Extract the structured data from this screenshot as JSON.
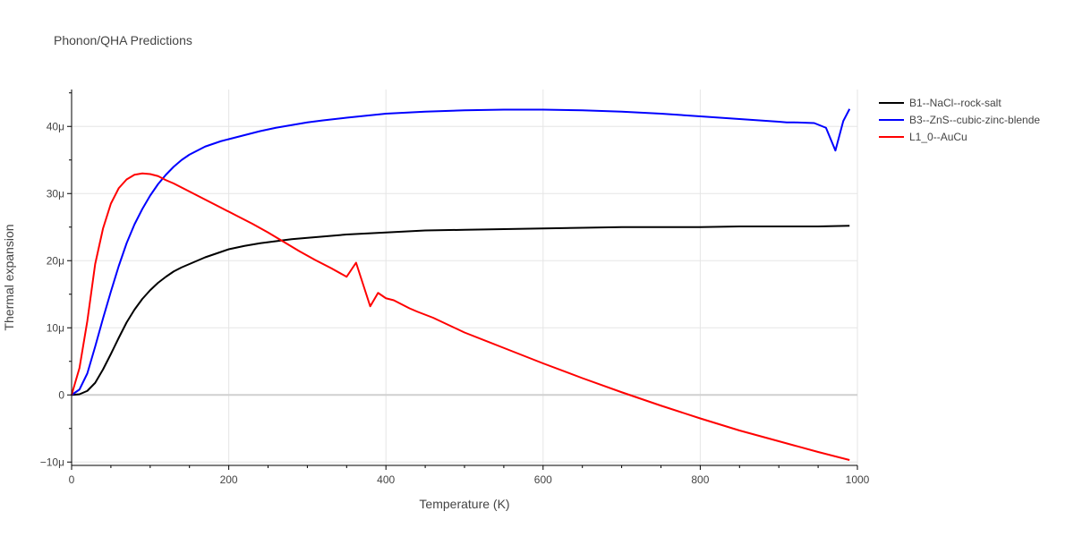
{
  "chart_data": {
    "type": "line",
    "title": "Phonon/QHA Predictions",
    "xlabel": "Temperature (K)",
    "ylabel": "Thermal expansion",
    "xlim": [
      0,
      1000
    ],
    "ylim": [
      -1.05e-05,
      4.55e-05
    ],
    "x_ticks": [
      0,
      200,
      400,
      600,
      800,
      1000
    ],
    "x_tick_labels": [
      "0",
      "200",
      "400",
      "600",
      "800",
      "1000"
    ],
    "y_ticks": [
      -1e-05,
      0,
      1e-05,
      2e-05,
      3e-05,
      4e-05
    ],
    "y_tick_labels": [
      "−10μ",
      "0",
      "10μ",
      "20μ",
      "30μ",
      "40μ"
    ],
    "grid": true,
    "legend_position": "top-right",
    "series": [
      {
        "name": "B1--NaCl--rock-salt",
        "color": "#000000",
        "x": [
          0,
          10,
          20,
          30,
          40,
          50,
          60,
          70,
          80,
          90,
          100,
          110,
          120,
          130,
          140,
          150,
          160,
          170,
          180,
          190,
          200,
          220,
          240,
          260,
          280,
          300,
          350,
          400,
          450,
          500,
          550,
          600,
          650,
          700,
          750,
          800,
          850,
          900,
          950,
          990
        ],
        "y": [
          0,
          1e-07,
          6e-07,
          1.8e-06,
          3.8e-06,
          6.1e-06,
          8.5e-06,
          1.08e-05,
          1.27e-05,
          1.43e-05,
          1.56e-05,
          1.67e-05,
          1.76e-05,
          1.84e-05,
          1.9e-05,
          1.95e-05,
          2e-05,
          2.05e-05,
          2.09e-05,
          2.13e-05,
          2.17e-05,
          2.22e-05,
          2.26e-05,
          2.29e-05,
          2.32e-05,
          2.34e-05,
          2.39e-05,
          2.42e-05,
          2.45e-05,
          2.46e-05,
          2.47e-05,
          2.48e-05,
          2.49e-05,
          2.5e-05,
          2.5e-05,
          2.5e-05,
          2.51e-05,
          2.51e-05,
          2.51e-05,
          2.52e-05
        ]
      },
      {
        "name": "B3--ZnS--cubic-zinc-blende",
        "color": "#0000ff",
        "x": [
          0,
          10,
          20,
          30,
          40,
          50,
          60,
          70,
          80,
          90,
          100,
          110,
          120,
          130,
          140,
          150,
          160,
          170,
          180,
          190,
          200,
          220,
          240,
          260,
          280,
          300,
          320,
          350,
          400,
          450,
          500,
          550,
          600,
          650,
          700,
          750,
          800,
          850,
          900,
          910,
          920,
          945,
          960,
          972,
          982,
          990
        ],
        "y": [
          0,
          8e-07,
          3.2e-06,
          7.2e-06,
          1.14e-05,
          1.54e-05,
          1.92e-05,
          2.26e-05,
          2.54e-05,
          2.77e-05,
          2.97e-05,
          3.14e-05,
          3.28e-05,
          3.4e-05,
          3.5e-05,
          3.58e-05,
          3.64e-05,
          3.7e-05,
          3.74e-05,
          3.78e-05,
          3.81e-05,
          3.87e-05,
          3.93e-05,
          3.98e-05,
          4.02e-05,
          4.06e-05,
          4.09e-05,
          4.13e-05,
          4.19e-05,
          4.22e-05,
          4.24e-05,
          4.25e-05,
          4.25e-05,
          4.24e-05,
          4.22e-05,
          4.19e-05,
          4.15e-05,
          4.11e-05,
          4.07e-05,
          4.06e-05,
          4.06e-05,
          4.05e-05,
          3.98e-05,
          3.64e-05,
          4.08e-05,
          4.26e-05
        ]
      },
      {
        "name": "L1_0--AuCu",
        "color": "#ff0000",
        "x": [
          0,
          10,
          20,
          30,
          40,
          50,
          60,
          70,
          80,
          90,
          100,
          110,
          120,
          130,
          140,
          150,
          170,
          190,
          210,
          230,
          250,
          270,
          290,
          310,
          330,
          350,
          362,
          380,
          390,
          400,
          410,
          420,
          430,
          440,
          460,
          500,
          550,
          600,
          650,
          700,
          750,
          800,
          850,
          900,
          950,
          990
        ],
        "y": [
          0,
          4e-06,
          1.1e-05,
          1.95e-05,
          2.48e-05,
          2.85e-05,
          3.08e-05,
          3.21e-05,
          3.28e-05,
          3.3e-05,
          3.29e-05,
          3.26e-05,
          3.2e-05,
          3.15e-05,
          3.09e-05,
          3.03e-05,
          2.91e-05,
          2.79e-05,
          2.67e-05,
          2.55e-05,
          2.42e-05,
          2.28e-05,
          2.14e-05,
          2.01e-05,
          1.89e-05,
          1.76e-05,
          1.97e-05,
          1.32e-05,
          1.52e-05,
          1.44e-05,
          1.41e-05,
          1.35e-05,
          1.29e-05,
          1.24e-05,
          1.15e-05,
          9.3e-06,
          7e-06,
          4.7e-06,
          2.5e-06,
          4e-07,
          -1.6e-06,
          -3.5e-06,
          -5.3e-06,
          -6.9e-06,
          -8.5e-06,
          -9.7e-06
        ]
      }
    ]
  }
}
